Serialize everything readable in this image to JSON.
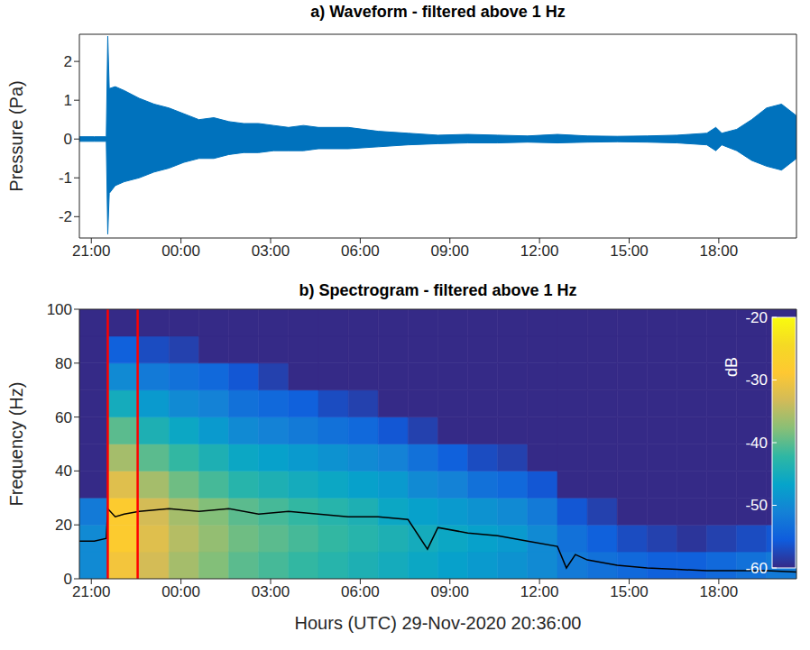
{
  "chart_data": [
    {
      "type": "area",
      "title": "a) Waveform - filtered above 1 Hz",
      "y_label": "Pressure (Pa)",
      "x": [
        0,
        0.5,
        0.9,
        0.95,
        1.0,
        1.2,
        1.5,
        2.0,
        2.5,
        3.0,
        3.5,
        4.0,
        4.5,
        5.0,
        5.5,
        6.0,
        6.5,
        7.0,
        7.5,
        8.0,
        9,
        10,
        11,
        12,
        13,
        14,
        15,
        16,
        17,
        18,
        19,
        20,
        21,
        21.3,
        21.5,
        22,
        22.5,
        23,
        23.5,
        24
      ],
      "upper": [
        0.06,
        0.06,
        0.06,
        2.65,
        1.3,
        1.35,
        1.25,
        1.05,
        0.9,
        0.8,
        0.65,
        0.5,
        0.55,
        0.45,
        0.4,
        0.4,
        0.35,
        0.3,
        0.35,
        0.3,
        0.3,
        0.2,
        0.15,
        0.1,
        0.12,
        0.1,
        0.08,
        0.12,
        0.08,
        0.07,
        0.08,
        0.1,
        0.15,
        0.3,
        0.15,
        0.25,
        0.5,
        0.8,
        0.9,
        0.6
      ],
      "lower": [
        -0.06,
        -0.06,
        -0.06,
        -2.45,
        -1.4,
        -1.2,
        -1.1,
        -1.0,
        -0.85,
        -0.75,
        -0.6,
        -0.5,
        -0.5,
        -0.4,
        -0.35,
        -0.35,
        -0.3,
        -0.3,
        -0.3,
        -0.25,
        -0.25,
        -0.2,
        -0.15,
        -0.12,
        -0.1,
        -0.1,
        -0.08,
        -0.1,
        -0.08,
        -0.07,
        -0.08,
        -0.1,
        -0.15,
        -0.3,
        -0.15,
        -0.3,
        -0.55,
        -0.7,
        -0.8,
        -0.5
      ],
      "color": "#0072bd",
      "xlim": [
        0,
        24
      ],
      "xticks": [
        {
          "value": 0.4,
          "label": "21:00"
        },
        {
          "value": 3.4,
          "label": "00:00"
        },
        {
          "value": 6.4,
          "label": "03:00"
        },
        {
          "value": 9.4,
          "label": "06:00"
        },
        {
          "value": 12.4,
          "label": "09:00"
        },
        {
          "value": 15.4,
          "label": "12:00"
        },
        {
          "value": 18.4,
          "label": "15:00"
        },
        {
          "value": 21.4,
          "label": "18:00"
        }
      ],
      "ylim": [
        -2.55,
        2.7
      ],
      "yticks": [
        -2,
        -1,
        0,
        1,
        2
      ]
    },
    {
      "type": "heatmap",
      "title": "b) Spectrogram - filtered above 1 Hz",
      "x_label": "Hours (UTC) 29-Nov-2020 20:36:00",
      "y_label": "Frequency (Hz)",
      "xlim": [
        0,
        24
      ],
      "xticks": [
        {
          "value": 0.4,
          "label": "21:00"
        },
        {
          "value": 3.4,
          "label": "00:00"
        },
        {
          "value": 6.4,
          "label": "03:00"
        },
        {
          "value": 9.4,
          "label": "06:00"
        },
        {
          "value": 12.4,
          "label": "09:00"
        },
        {
          "value": 15.4,
          "label": "12:00"
        },
        {
          "value": 18.4,
          "label": "15:00"
        },
        {
          "value": 21.4,
          "label": "18:00"
        }
      ],
      "ylim": [
        0,
        100
      ],
      "yticks": [
        0,
        20,
        40,
        60,
        80,
        100
      ],
      "cells": {
        "time_edges": [
          0,
          0.95,
          1.95,
          3,
          4,
          5,
          6,
          7,
          8,
          9,
          10,
          11,
          12,
          13,
          14,
          15,
          16,
          17,
          18,
          19,
          20,
          21,
          22,
          23,
          24
        ],
        "frequency_edges": [
          0,
          10,
          20,
          30,
          40,
          50,
          60,
          70,
          80,
          90,
          100
        ],
        "values": [
          [
            -50,
            -50,
            -52,
            -60,
            -60,
            -60,
            -60,
            -60,
            -60,
            -60
          ],
          [
            -30,
            -28,
            -28,
            -32,
            -36,
            -40,
            -45,
            -50,
            -55,
            -60
          ],
          [
            -33,
            -32,
            -33,
            -36,
            -40,
            -44,
            -48,
            -52,
            -57,
            -60
          ],
          [
            -36,
            -35,
            -36,
            -39,
            -42,
            -46,
            -50,
            -53,
            -58,
            -60
          ],
          [
            -38,
            -37,
            -38,
            -41,
            -44,
            -48,
            -51,
            -54,
            -60,
            -60
          ],
          [
            -40,
            -39,
            -40,
            -43,
            -46,
            -50,
            -53,
            -56,
            -60,
            -60
          ],
          [
            -41,
            -40,
            -41,
            -44,
            -47,
            -51,
            -54,
            -58,
            -60,
            -60
          ],
          [
            -42,
            -41,
            -42,
            -45,
            -48,
            -52,
            -55,
            -60,
            -60,
            -60
          ],
          [
            -43,
            -42,
            -43,
            -46,
            -49,
            -53,
            -57,
            -60,
            -60,
            -60
          ],
          [
            -44,
            -43,
            -44,
            -47,
            -50,
            -54,
            -58,
            -60,
            -60,
            -60
          ],
          [
            -45,
            -44,
            -46,
            -48,
            -51,
            -56,
            -60,
            -60,
            -60,
            -60
          ],
          [
            -46,
            -45,
            -47,
            -50,
            -53,
            -58,
            -60,
            -60,
            -60,
            -60
          ],
          [
            -47,
            -46,
            -48,
            -51,
            -55,
            -60,
            -60,
            -60,
            -60,
            -60
          ],
          [
            -48,
            -47,
            -49,
            -53,
            -57,
            -60,
            -60,
            -60,
            -60,
            -60
          ],
          [
            -49,
            -48,
            -50,
            -54,
            -58,
            -60,
            -60,
            -60,
            -60,
            -60
          ],
          [
            -50,
            -50,
            -52,
            -56,
            -60,
            -60,
            -60,
            -60,
            -60,
            -60
          ],
          [
            -52,
            -53,
            -56,
            -60,
            -60,
            -60,
            -60,
            -60,
            -60,
            -60
          ],
          [
            -53,
            -55,
            -58,
            -60,
            -60,
            -60,
            -60,
            -60,
            -60,
            -60
          ],
          [
            -54,
            -57,
            -60,
            -60,
            -60,
            -60,
            -60,
            -60,
            -60,
            -60
          ],
          [
            -55,
            -58,
            -60,
            -60,
            -60,
            -60,
            -60,
            -60,
            -60,
            -60
          ],
          [
            -55,
            -59,
            -60,
            -60,
            -60,
            -60,
            -60,
            -60,
            -60,
            -60
          ],
          [
            -54,
            -58,
            -60,
            -60,
            -60,
            -60,
            -60,
            -60,
            -60,
            -60
          ],
          [
            -53,
            -57,
            -60,
            -60,
            -60,
            -60,
            -60,
            -60,
            -60,
            -60
          ],
          [
            -52,
            -56,
            -60,
            -60,
            -60,
            -60,
            -60,
            -60,
            -60,
            -60
          ]
        ]
      },
      "colorbar": {
        "label": "dB",
        "lim": [
          -60,
          -20
        ],
        "ticks": [
          -60,
          -50,
          -40,
          -30,
          -20
        ]
      },
      "line": {
        "x": [
          0,
          0.5,
          0.9,
          0.95,
          1.2,
          1.5,
          2,
          3,
          4,
          5,
          6,
          7,
          8,
          9,
          10,
          11,
          11.65,
          12,
          13,
          14,
          15,
          16,
          16.3,
          16.6,
          17,
          18,
          19,
          20,
          21,
          22,
          23,
          24
        ],
        "values": [
          14,
          14,
          15,
          26,
          23,
          24,
          25,
          26,
          25,
          26,
          24,
          25,
          24,
          23,
          23,
          22,
          11,
          19,
          17,
          16,
          14,
          12,
          4,
          9,
          7,
          5,
          4,
          3.5,
          3,
          3,
          3,
          2.5
        ],
        "color": "#000000"
      },
      "vertical_lines": {
        "x": [
          0.95,
          1.95
        ],
        "color": "#ff0000"
      }
    }
  ]
}
